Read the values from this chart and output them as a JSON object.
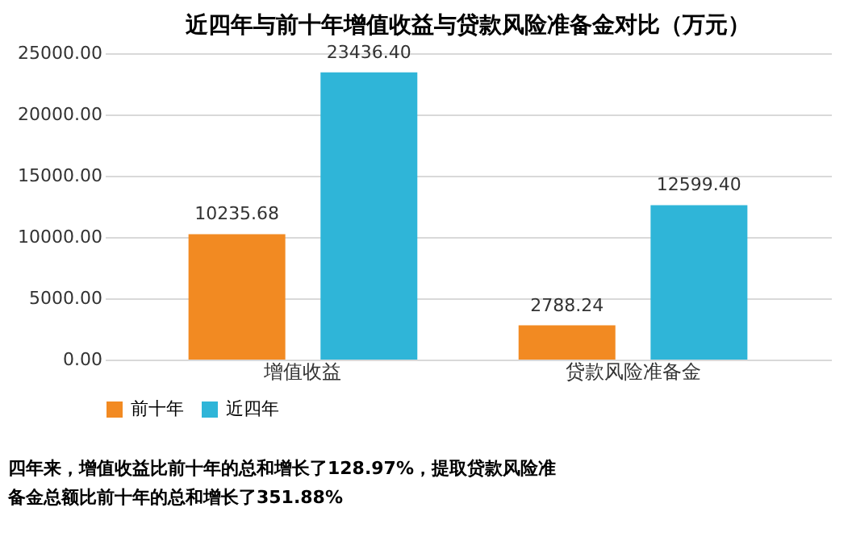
{
  "chart_data": {
    "type": "bar",
    "title": "近四年与前十年增值收益与贷款风险准备金对比（万元）",
    "categories": [
      "增值收益",
      "贷款风险准备金"
    ],
    "series": [
      {
        "name": "前十年",
        "color": "#f28a22",
        "values": [
          10235.68,
          2788.24
        ],
        "value_labels": [
          "10235.68",
          "2788.24"
        ]
      },
      {
        "name": "近四年",
        "color": "#2fb5d8",
        "values": [
          23436.4,
          12599.4
        ],
        "value_labels": [
          "23436.40",
          "12599.40"
        ]
      }
    ],
    "ylim": [
      0,
      25000
    ],
    "yticks": [
      {
        "value": 0,
        "label": "0.00"
      },
      {
        "value": 5000,
        "label": "5000.00"
      },
      {
        "value": 10000,
        "label": "10000.00"
      },
      {
        "value": 15000,
        "label": "15000.00"
      },
      {
        "value": 20000,
        "label": "20000.00"
      },
      {
        "value": 25000,
        "label": "25000.00"
      }
    ],
    "grid": "y",
    "legend": "bottom",
    "annotations": [
      "四年来，增值收益比前十年的总和增长了128.97%，提取贷款风险准备金总额比前十年的总和增长了351.88%"
    ]
  }
}
